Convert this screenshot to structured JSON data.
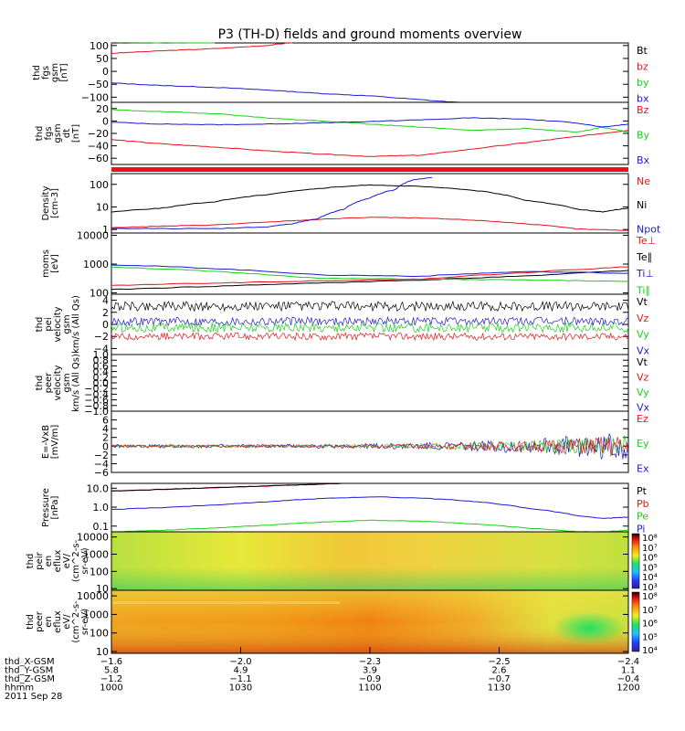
{
  "title": "P3 (TH-D) fields and ground moments overview",
  "colors": {
    "black": "#000000",
    "red": "#e8121a",
    "green": "#18d018",
    "blue": "#1a1ad8"
  },
  "chart_data": [
    {
      "id": "p1",
      "type": "line",
      "ylabel": [
        "thd",
        "fgs",
        "gsm",
        "[nT]"
      ],
      "ylim": [
        -120,
        110
      ],
      "yticks": [
        "100",
        "50",
        "0",
        "−50",
        "−100"
      ],
      "ytick_values": [
        100,
        50,
        0,
        -50,
        -100
      ],
      "legend": [
        {
          "name": "Bt",
          "color": "black"
        },
        {
          "name": "bz",
          "color": "red"
        },
        {
          "name": "by",
          "color": "green"
        },
        {
          "name": "bx",
          "color": "blue"
        }
      ],
      "series": [
        {
          "name": "bz",
          "color": "red",
          "x": [
            0,
            0.1,
            0.2,
            0.3,
            0.35
          ],
          "y": [
            70,
            80,
            88,
            100,
            112
          ]
        },
        {
          "name": "by",
          "color": "green",
          "x": [
            0,
            0.1,
            0.2
          ],
          "y": [
            108,
            110,
            112
          ]
        },
        {
          "name": "bx",
          "color": "blue",
          "x": [
            0,
            0.1,
            0.2,
            0.3,
            0.4,
            0.5,
            0.6,
            0.7
          ],
          "y": [
            -45,
            -55,
            -62,
            -72,
            -85,
            -95,
            -110,
            -125
          ]
        }
      ]
    },
    {
      "id": "p2",
      "type": "line",
      "ylabel": [
        "thd",
        "fgs",
        "gsm",
        "dt",
        "[nT]"
      ],
      "ylim": [
        -70,
        30
      ],
      "yticks": [
        "20",
        "0",
        "−20",
        "−40",
        "−60"
      ],
      "ytick_values": [
        20,
        0,
        -20,
        -40,
        -60
      ],
      "legend": [
        {
          "name": "Bz",
          "color": "red"
        },
        {
          "name": "By",
          "color": "green"
        },
        {
          "name": "Bx",
          "color": "blue"
        }
      ],
      "series": [
        {
          "name": "Bz",
          "color": "red",
          "x": [
            0,
            0.1,
            0.2,
            0.3,
            0.4,
            0.5,
            0.6,
            0.7,
            0.8,
            0.9,
            1
          ],
          "y": [
            -30,
            -37,
            -42,
            -48,
            -53,
            -57,
            -55,
            -45,
            -35,
            -25,
            -15
          ]
        },
        {
          "name": "By",
          "color": "green",
          "x": [
            0,
            0.1,
            0.2,
            0.3,
            0.4,
            0.5,
            0.6,
            0.7,
            0.8,
            0.9,
            0.95,
            1
          ],
          "y": [
            18,
            15,
            12,
            5,
            0,
            -5,
            -10,
            -15,
            -12,
            -18,
            -10,
            -18
          ]
        },
        {
          "name": "Bx",
          "color": "blue",
          "x": [
            0,
            0.1,
            0.2,
            0.3,
            0.4,
            0.5,
            0.6,
            0.7,
            0.8,
            0.9,
            0.95,
            1
          ],
          "y": [
            -2,
            -5,
            -6,
            -5,
            -3,
            -1,
            2,
            5,
            3,
            -3,
            -10,
            -5
          ]
        }
      ]
    },
    {
      "id": "p3",
      "type": "line",
      "log": true,
      "ylabel": [
        "Density",
        "[cm-3]"
      ],
      "ylim": [
        0.7,
        300
      ],
      "yticks": [
        "100",
        "10",
        "1"
      ],
      "ytick_values": [
        100,
        10,
        1
      ],
      "legend": [
        {
          "name": "Ne",
          "color": "red"
        },
        {
          "name": "Ni",
          "color": "black"
        },
        {
          "name": "Npot",
          "color": "blue"
        }
      ],
      "series": [
        {
          "name": "Ni",
          "color": "black",
          "x": [
            0,
            0.1,
            0.2,
            0.3,
            0.4,
            0.5,
            0.6,
            0.7,
            0.8,
            0.9,
            0.95,
            1
          ],
          "y": [
            6,
            9,
            17,
            35,
            65,
            95,
            80,
            55,
            20,
            8,
            6,
            9
          ]
        },
        {
          "name": "Ne",
          "color": "red",
          "x": [
            0,
            0.1,
            0.2,
            0.3,
            0.4,
            0.5,
            0.6,
            0.7,
            0.8,
            0.9,
            1
          ],
          "y": [
            1.2,
            1.4,
            1.6,
            2.1,
            2.8,
            3.5,
            3.2,
            2.6,
            1.8,
            1.05,
            0.9
          ]
        },
        {
          "name": "Npot",
          "color": "blue",
          "x": [
            0,
            0.2,
            0.3,
            0.35,
            0.4,
            0.45,
            0.5,
            0.55,
            0.58,
            0.62
          ],
          "y": [
            1.1,
            1.1,
            1.3,
            1.8,
            3,
            8,
            25,
            60,
            150,
            200
          ]
        }
      ]
    },
    {
      "id": "p4",
      "type": "line",
      "log": true,
      "ylabel": [
        "moms",
        "[eV]"
      ],
      "ylim": [
        90,
        12000
      ],
      "yticks": [
        "10000",
        "1000",
        "100"
      ],
      "ytick_values": [
        10000,
        1000,
        100
      ],
      "legend": [
        {
          "name": "Te⊥",
          "color": "red"
        },
        {
          "name": "Te∥",
          "color": "black"
        },
        {
          "name": "Ti⊥",
          "color": "blue"
        },
        {
          "name": "Ti∥",
          "color": "green"
        }
      ],
      "series": [
        {
          "name": "Te⊥",
          "color": "red",
          "x": [
            0,
            0.2,
            0.4,
            0.6,
            0.8,
            1
          ],
          "y": [
            180,
            220,
            260,
            300,
            500,
            800
          ]
        },
        {
          "name": "Te∥",
          "color": "black",
          "x": [
            0,
            0.2,
            0.4,
            0.6,
            0.8,
            1
          ],
          "y": [
            130,
            170,
            220,
            280,
            380,
            600
          ]
        },
        {
          "name": "Ti⊥",
          "color": "blue",
          "x": [
            0,
            0.2,
            0.4,
            0.6,
            0.8,
            1
          ],
          "y": [
            950,
            700,
            420,
            380,
            550,
            480
          ]
        },
        {
          "name": "Ti∥",
          "color": "green",
          "x": [
            0,
            0.2,
            0.4,
            0.6,
            0.8,
            1
          ],
          "y": [
            800,
            550,
            320,
            300,
            280,
            250
          ]
        }
      ]
    },
    {
      "id": "p5",
      "type": "line",
      "noisy": true,
      "ylabel": [
        "thd",
        "pei",
        "velocity",
        "gsm",
        "km/s (All Qs)"
      ],
      "ylim": [
        -5,
        5
      ],
      "yticks": [
        "4",
        "2",
        "0",
        "−2",
        "−4"
      ],
      "ytick_values": [
        4,
        2,
        0,
        -2,
        -4
      ],
      "legend": [
        {
          "name": "Vt",
          "color": "black"
        },
        {
          "name": "Vz",
          "color": "red"
        },
        {
          "name": "Vy",
          "color": "green"
        },
        {
          "name": "Vx",
          "color": "blue"
        }
      ],
      "series": [
        {
          "name": "Vt",
          "color": "black",
          "level": 3,
          "amp": 0.8
        },
        {
          "name": "Vx",
          "color": "blue",
          "level": 0.5,
          "amp": 0.7
        },
        {
          "name": "Vy",
          "color": "green",
          "level": -0.5,
          "amp": 0.8
        },
        {
          "name": "Vz",
          "color": "red",
          "level": -2,
          "amp": 0.6
        }
      ]
    },
    {
      "id": "p6",
      "type": "line",
      "ylabel": [
        "thd",
        "peer",
        "velocity",
        "gsm",
        "km/s (All Qs)"
      ],
      "ylim": [
        -1,
        1
      ],
      "yticks": [
        "1.0",
        "0.8",
        "0.6",
        "0.4",
        "0.2",
        "0.0",
        "−0.2",
        "−0.4",
        "−0.6",
        "−0.8",
        "−1.0"
      ],
      "ytick_values": [
        1,
        0.8,
        0.6,
        0.4,
        0.2,
        0,
        -0.2,
        -0.4,
        -0.6,
        -0.8,
        -1
      ],
      "legend": [
        {
          "name": "Vt",
          "color": "black"
        },
        {
          "name": "Vz",
          "color": "red"
        },
        {
          "name": "Vy",
          "color": "green"
        },
        {
          "name": "Vx",
          "color": "blue"
        }
      ],
      "series": []
    },
    {
      "id": "p7",
      "type": "line",
      "noisy": true,
      "ylabel": [
        "E=-VxB",
        "[mV/m]"
      ],
      "ylim": [
        -6,
        8
      ],
      "yticks": [
        "6",
        "4",
        "2",
        "0",
        "−2",
        "−4",
        "−6"
      ],
      "ytick_values": [
        6,
        4,
        2,
        0,
        -2,
        -4,
        -6
      ],
      "legend": [
        {
          "name": "Ez",
          "color": "red"
        },
        {
          "name": "Ey",
          "color": "green"
        },
        {
          "name": "Ex",
          "color": "blue"
        }
      ],
      "series": [
        {
          "name": "Ex",
          "color": "blue",
          "level": 0,
          "amp": 0.4,
          "grow": true
        },
        {
          "name": "Ey",
          "color": "green",
          "level": 0,
          "amp": 0.3,
          "grow": true
        },
        {
          "name": "Ez",
          "color": "red",
          "level": 0,
          "amp": 0.3,
          "grow": true
        }
      ]
    },
    {
      "id": "p8",
      "type": "line",
      "log": true,
      "ylabel": [
        "Pressure",
        "[nPa]"
      ],
      "ylim": [
        0.05,
        18
      ],
      "yticks": [
        "10.0",
        "1.0",
        "0.1"
      ],
      "ytick_values": [
        10,
        1,
        0.1
      ],
      "legend": [
        {
          "name": "Pt",
          "color": "black"
        },
        {
          "name": "Pb",
          "color": "red"
        },
        {
          "name": "Pe",
          "color": "green"
        },
        {
          "name": "Pi",
          "color": "blue"
        }
      ],
      "series": [
        {
          "name": "Pb",
          "color": "red",
          "x": [
            0,
            0.1,
            0.2,
            0.3,
            0.4,
            0.45
          ],
          "y": [
            7,
            8.5,
            10.5,
            13,
            16,
            18
          ]
        },
        {
          "name": "Pt",
          "color": "black",
          "x": [
            0,
            0.1,
            0.2,
            0.3,
            0.4,
            0.45
          ],
          "y": [
            7.2,
            8.7,
            10.7,
            13.2,
            16.3,
            18
          ]
        },
        {
          "name": "Pi",
          "color": "blue",
          "x": [
            0,
            0.1,
            0.2,
            0.3,
            0.4,
            0.5,
            0.6,
            0.7,
            0.8,
            0.9,
            0.95,
            1
          ],
          "y": [
            0.75,
            0.95,
            1.3,
            1.9,
            2.8,
            3.5,
            3.0,
            2.0,
            0.9,
            0.35,
            0.25,
            0.3
          ]
        },
        {
          "name": "Pe",
          "color": "green",
          "x": [
            0,
            0.1,
            0.2,
            0.3,
            0.4,
            0.5,
            0.6,
            0.7,
            0.8,
            0.9,
            0.95,
            1
          ],
          "y": [
            0.05,
            0.06,
            0.08,
            0.11,
            0.16,
            0.2,
            0.18,
            0.13,
            0.08,
            0.05,
            0.05,
            0.06
          ]
        }
      ]
    },
    {
      "id": "p9",
      "type": "heatmap",
      "log": true,
      "ylabel": [
        "thd",
        "peir",
        "en",
        "eflux",
        "eV/",
        "(cm^2-s-",
        "sr-eV)"
      ],
      "ylim": [
        8,
        20000
      ],
      "yticks": [
        "10000",
        "1000",
        "100",
        "10"
      ],
      "ytick_values": [
        10000,
        1000,
        100,
        10
      ],
      "colorbar": {
        "ticks": [
          "10⁸",
          "10⁷",
          "10⁶",
          "10⁵",
          "10⁴",
          "10³"
        ]
      }
    },
    {
      "id": "p10",
      "type": "heatmap",
      "log": true,
      "ylabel": [
        "thd",
        "peer",
        "en",
        "eflux",
        "eV/",
        "(cm^2-s-",
        "sr-eV)"
      ],
      "ylim": [
        8,
        20000
      ],
      "yticks": [
        "10000",
        "1000",
        "100",
        "10"
      ],
      "ytick_values": [
        10000,
        1000,
        100,
        10
      ],
      "colorbar": {
        "ticks": [
          "10⁸",
          "10⁷",
          "10⁶",
          "10⁵",
          "10⁴"
        ]
      }
    }
  ],
  "xaxis": {
    "rows": [
      {
        "label": "thd_X-GSM",
        "values": [
          "−1.6",
          "−2.0",
          "−2.3",
          "−2.5",
          "−2.4"
        ]
      },
      {
        "label": "thd_Y-GSM",
        "values": [
          "5.8",
          "4.9",
          "3.9",
          "2.6",
          "1.1"
        ]
      },
      {
        "label": "thd_Z-GSM",
        "values": [
          "−1.2",
          "−1.1",
          "−0.9",
          "−0.7",
          "−0.4"
        ]
      },
      {
        "label": "hhmm",
        "values": [
          "1000",
          "1030",
          "1100",
          "1130",
          "1200"
        ]
      }
    ],
    "date": "2011 Sep 28"
  }
}
